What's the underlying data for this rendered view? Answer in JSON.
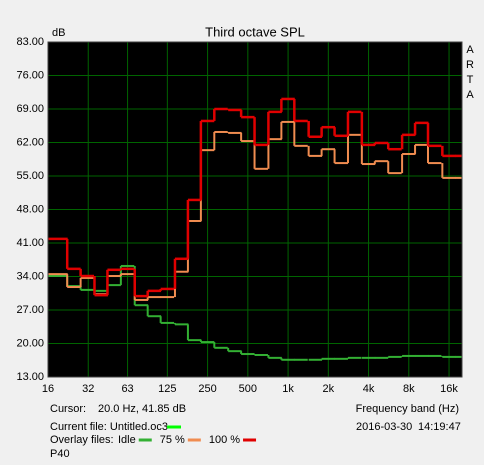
{
  "chart_data": {
    "type": "step",
    "title": "Third octave SPL",
    "y_label": "dB",
    "x_label": "Frequency band (Hz)",
    "side_label": "ARTA",
    "log_x": true,
    "grid": true,
    "grid_color": "#006400",
    "background": "#000000",
    "xlim": [
      16,
      20000
    ],
    "ylim": [
      13,
      83
    ],
    "xticks": [
      16,
      32,
      63,
      125,
      250,
      500,
      {
        "value": 1000,
        "label": "1k"
      },
      {
        "value": 2000,
        "label": "2k"
      },
      {
        "value": 4000,
        "label": "4k"
      },
      {
        "value": 8000,
        "label": "8k"
      },
      {
        "value": 16000,
        "label": "16k"
      }
    ],
    "yticks": [
      {
        "value": 13,
        "label": "13.00"
      },
      {
        "value": 20,
        "label": "20.00"
      },
      {
        "value": 27,
        "label": "27.00"
      },
      {
        "value": 34,
        "label": "34.00"
      },
      {
        "value": 41,
        "label": "41.00"
      },
      {
        "value": 48,
        "label": "48.00"
      },
      {
        "value": 55,
        "label": "55.00"
      },
      {
        "value": 62,
        "label": "62.00"
      },
      {
        "value": 69,
        "label": "69.00"
      },
      {
        "value": 76,
        "label": "76.00"
      },
      {
        "value": 83,
        "label": "83.00"
      }
    ],
    "x": [
      20,
      25,
      31.5,
      40,
      50,
      63,
      80,
      100,
      125,
      160,
      200,
      250,
      315,
      400,
      500,
      630,
      800,
      1000,
      1250,
      1600,
      2000,
      2500,
      3150,
      4000,
      5000,
      6300,
      8000,
      10000,
      12500,
      16000,
      20000
    ],
    "series": [
      {
        "name": "Idle",
        "color": "#33b033",
        "width": 2,
        "values": [
          34.1,
          32,
          31.2,
          31,
          32.2,
          36.2,
          28,
          25.7,
          24.3,
          24,
          20.7,
          20.3,
          19.1,
          18.4,
          17.8,
          17.6,
          17,
          16.6,
          16.6,
          16.6,
          16.8,
          16.8,
          17,
          17,
          17,
          17.2,
          17.4,
          17.4,
          17.4,
          17.2,
          17.2
        ]
      },
      {
        "name": "75 %",
        "color": "#f08c50",
        "width": 2,
        "values": [
          34.5,
          31.8,
          33.7,
          30.3,
          34.1,
          34.5,
          29.1,
          29.7,
          29.7,
          35,
          45.6,
          60.4,
          64.2,
          64,
          62.3,
          56.5,
          62.7,
          66.3,
          61.3,
          59.2,
          60.6,
          57.7,
          63.6,
          57.5,
          58.1,
          55.6,
          59.6,
          61.5,
          57.7,
          54.6,
          54.6
        ]
      },
      {
        "name": "100 %",
        "color": "#e00000",
        "width": 2.5,
        "values": [
          41.85,
          35.6,
          34.1,
          30.1,
          35.4,
          35.6,
          29.9,
          31,
          31.4,
          37.7,
          50,
          66.5,
          69,
          68.8,
          67.3,
          61.5,
          68.4,
          71.1,
          66.5,
          63.2,
          65.2,
          63.4,
          68.4,
          61.5,
          61.9,
          60.6,
          63.6,
          66.1,
          61.3,
          59.2,
          59.2
        ]
      }
    ],
    "cursor_label": "Cursor:",
    "cursor_value": "20.0 Hz, 41.85 dB",
    "current_file": "Current file: Untitled.oc3",
    "current_color": "#00ff00",
    "overlay_label": "Overlay files:",
    "profile": "P40",
    "date": "2016-03-30",
    "time": "14:19:47"
  }
}
